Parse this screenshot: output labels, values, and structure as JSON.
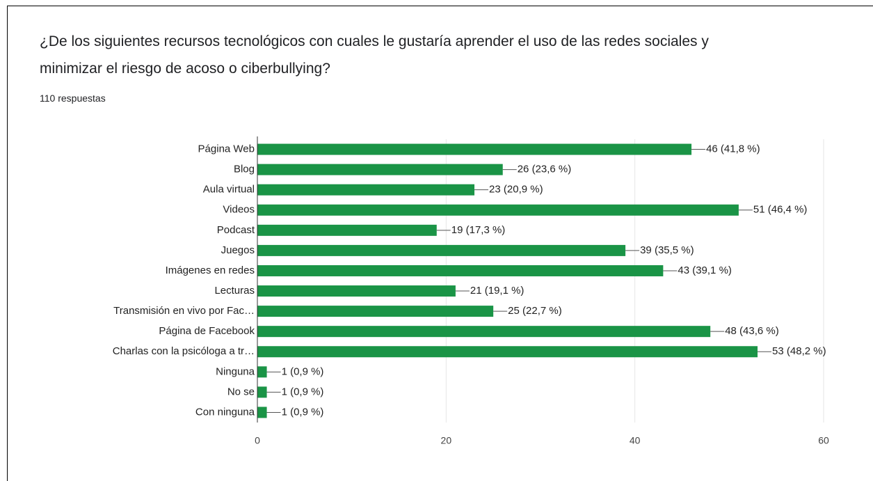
{
  "chart_data": {
    "type": "bar",
    "orientation": "horizontal",
    "title": "¿De los siguientes recursos tecnológicos con cuales le gustaría aprender el uso de las redes sociales y minimizar el riesgo de acoso o ciberbullying?",
    "subtitle": "110 respuestas",
    "categories": [
      "Página Web",
      "Blog",
      "Aula virtual",
      "Videos",
      "Podcast",
      "Juegos",
      "Imágenes en redes",
      "Lecturas",
      "Transmisión en vivo por Fac…",
      "Página de Facebook",
      "Charlas con la psicóloga a tr…",
      "Ninguna",
      "No se",
      "Con ninguna"
    ],
    "values": [
      46,
      26,
      23,
      51,
      19,
      39,
      43,
      21,
      25,
      48,
      53,
      1,
      1,
      1
    ],
    "value_labels": [
      "46 (41,8 %)",
      "26 (23,6 %)",
      "23 (20,9 %)",
      "51 (46,4 %)",
      "19 (17,3 %)",
      "39 (35,5 %)",
      "43 (39,1 %)",
      "21 (19,1 %)",
      "25 (22,7 %)",
      "48 (43,6 %)",
      "53 (48,2 %)",
      "1 (0,9 %)",
      "1 (0,9 %)",
      "1 (0,9 %)"
    ],
    "color": "#1a9446",
    "xlim": [
      0,
      60
    ],
    "xticks": [
      0,
      20,
      40,
      60
    ],
    "grid": true
  }
}
